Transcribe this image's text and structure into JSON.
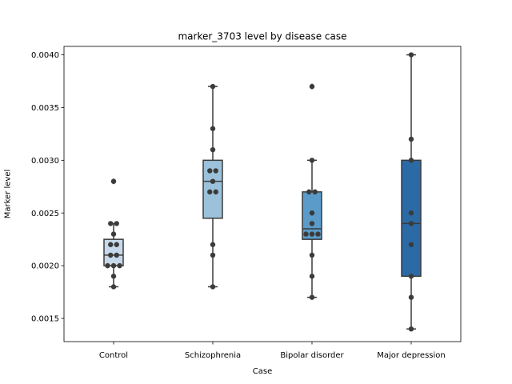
{
  "chart_data": {
    "type": "box",
    "title": "marker_3703 level by disease case",
    "xlabel": "Case",
    "ylabel": "Marker level",
    "ylim": [
      0.00128,
      0.00408
    ],
    "yticks": [
      0.0015,
      0.002,
      0.0025,
      0.003,
      0.0035,
      0.004
    ],
    "ytick_labels": [
      "0.0015",
      "0.0020",
      "0.0025",
      "0.0030",
      "0.0035",
      "0.0040"
    ],
    "grid": false,
    "categories": [
      "Control",
      "Schizophrenia",
      "Bipolar disorder",
      "Major depression"
    ],
    "colors": [
      "#c6d9ea",
      "#9cc2db",
      "#5a9bc9",
      "#2c6aa6"
    ],
    "boxes": [
      {
        "q1": 0.002,
        "median": 0.0021,
        "q3": 0.00225,
        "whisker_low": 0.0018,
        "whisker_high": 0.0024,
        "outliers": [
          0.0028
        ]
      },
      {
        "q1": 0.00245,
        "median": 0.0028,
        "q3": 0.003,
        "whisker_low": 0.0018,
        "whisker_high": 0.0037,
        "outliers": []
      },
      {
        "q1": 0.00225,
        "median": 0.00235,
        "q3": 0.0027,
        "whisker_low": 0.0017,
        "whisker_high": 0.003,
        "outliers": [
          0.0037
        ]
      },
      {
        "q1": 0.0019,
        "median": 0.0024,
        "q3": 0.003,
        "whisker_low": 0.0014,
        "whisker_high": 0.004,
        "outliers": []
      }
    ],
    "points": [
      [
        0.0018,
        0.0019,
        0.002,
        0.002,
        0.002,
        0.0021,
        0.0021,
        0.0022,
        0.0022,
        0.0023,
        0.0024,
        0.0024,
        0.0028
      ],
      [
        0.0018,
        0.0021,
        0.0022,
        0.0027,
        0.0027,
        0.0028,
        0.0029,
        0.0029,
        0.0031,
        0.0033,
        0.0037
      ],
      [
        0.0017,
        0.0019,
        0.0021,
        0.0023,
        0.0023,
        0.0023,
        0.0024,
        0.0025,
        0.0027,
        0.0027,
        0.003,
        0.0037
      ],
      [
        0.0014,
        0.0017,
        0.0019,
        0.0022,
        0.0024,
        0.0025,
        0.003,
        0.0032,
        0.004
      ]
    ]
  }
}
